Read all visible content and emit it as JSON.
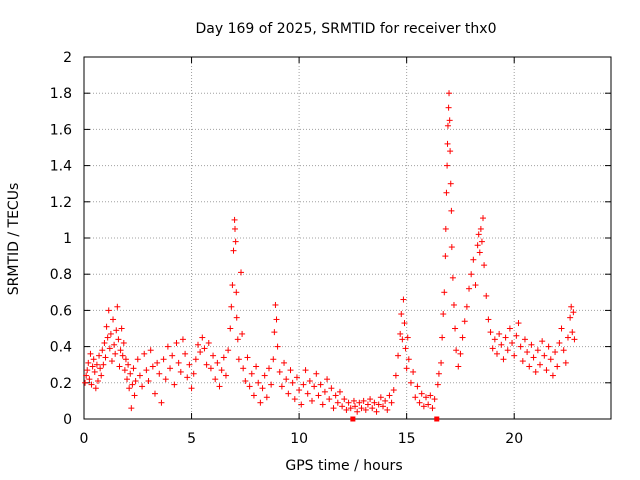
{
  "chart_data": {
    "type": "scatter",
    "title": "Day 169 of 2025, SRMTID for receiver thx0",
    "xlabel": "GPS time / hours",
    "ylabel": "SRMTID / TECUs",
    "xlim": [
      0,
      24.5
    ],
    "ylim": [
      0,
      2
    ],
    "xticks": [
      0,
      5,
      10,
      15,
      20
    ],
    "xtick_labels": [
      "0",
      "5",
      "10",
      "15",
      "20"
    ],
    "yticks": [
      0,
      0.2,
      0.4,
      0.6,
      0.8,
      1,
      1.2,
      1.4,
      1.6,
      1.8,
      2
    ],
    "ytick_labels": [
      "0",
      "0.2",
      "0.4",
      "0.6",
      "0.8",
      "1",
      "1.2",
      "1.4",
      "1.6",
      "1.8",
      "2"
    ],
    "grid": true,
    "marker": "+",
    "color": "#ff0000",
    "series": [
      {
        "name": "SRMTID",
        "points": [
          [
            0.05,
            0.2
          ],
          [
            0.1,
            0.24
          ],
          [
            0.15,
            0.27
          ],
          [
            0.2,
            0.31
          ],
          [
            0.25,
            0.22
          ],
          [
            0.3,
            0.36
          ],
          [
            0.35,
            0.19
          ],
          [
            0.4,
            0.29
          ],
          [
            0.45,
            0.33
          ],
          [
            0.5,
            0.26
          ],
          [
            0.55,
            0.17
          ],
          [
            0.6,
            0.3
          ],
          [
            0.65,
            0.21
          ],
          [
            0.7,
            0.35
          ],
          [
            0.75,
            0.28
          ],
          [
            0.8,
            0.24
          ],
          [
            0.85,
            0.38
          ],
          [
            0.9,
            0.3
          ],
          [
            0.95,
            0.42
          ],
          [
            1.0,
            0.34
          ],
          [
            1.05,
            0.51
          ],
          [
            1.1,
            0.45
          ],
          [
            1.15,
            0.6
          ],
          [
            1.2,
            0.39
          ],
          [
            1.25,
            0.47
          ],
          [
            1.3,
            0.32
          ],
          [
            1.35,
            0.55
          ],
          [
            1.4,
            0.41
          ],
          [
            1.45,
            0.36
          ],
          [
            1.5,
            0.49
          ],
          [
            1.55,
            0.62
          ],
          [
            1.6,
            0.44
          ],
          [
            1.65,
            0.29
          ],
          [
            1.7,
            0.38
          ],
          [
            1.75,
            0.5
          ],
          [
            1.8,
            0.35
          ],
          [
            1.85,
            0.42
          ],
          [
            1.9,
            0.27
          ],
          [
            1.95,
            0.33
          ],
          [
            2.0,
            0.22
          ],
          [
            2.05,
            0.3
          ],
          [
            2.1,
            0.17
          ],
          [
            2.15,
            0.25
          ],
          [
            2.2,
            0.06
          ],
          [
            2.25,
            0.19
          ],
          [
            2.3,
            0.28
          ],
          [
            2.35,
            0.13
          ],
          [
            2.4,
            0.21
          ],
          [
            2.5,
            0.33
          ],
          [
            2.6,
            0.24
          ],
          [
            2.7,
            0.18
          ],
          [
            2.8,
            0.36
          ],
          [
            2.9,
            0.27
          ],
          [
            3.0,
            0.21
          ],
          [
            3.1,
            0.38
          ],
          [
            3.2,
            0.29
          ],
          [
            3.3,
            0.14
          ],
          [
            3.4,
            0.31
          ],
          [
            3.5,
            0.25
          ],
          [
            3.6,
            0.09
          ],
          [
            3.7,
            0.33
          ],
          [
            3.8,
            0.22
          ],
          [
            3.9,
            0.4
          ],
          [
            4.0,
            0.28
          ],
          [
            4.1,
            0.35
          ],
          [
            4.2,
            0.19
          ],
          [
            4.3,
            0.42
          ],
          [
            4.4,
            0.31
          ],
          [
            4.5,
            0.26
          ],
          [
            4.6,
            0.44
          ],
          [
            4.7,
            0.36
          ],
          [
            4.8,
            0.23
          ],
          [
            4.9,
            0.3
          ],
          [
            5.0,
            0.17
          ],
          [
            5.1,
            0.25
          ],
          [
            5.2,
            0.33
          ],
          [
            5.3,
            0.41
          ],
          [
            5.4,
            0.37
          ],
          [
            5.5,
            0.45
          ],
          [
            5.6,
            0.39
          ],
          [
            5.7,
            0.3
          ],
          [
            5.8,
            0.42
          ],
          [
            5.9,
            0.28
          ],
          [
            6.0,
            0.35
          ],
          [
            6.1,
            0.22
          ],
          [
            6.2,
            0.31
          ],
          [
            6.3,
            0.18
          ],
          [
            6.4,
            0.27
          ],
          [
            6.5,
            0.34
          ],
          [
            6.6,
            0.24
          ],
          [
            6.7,
            0.38
          ],
          [
            6.8,
            0.5
          ],
          [
            6.85,
            0.62
          ],
          [
            6.9,
            0.74
          ],
          [
            6.95,
            0.93
          ],
          [
            7.0,
            1.1
          ],
          [
            7.02,
            1.05
          ],
          [
            7.05,
            0.98
          ],
          [
            7.08,
            0.7
          ],
          [
            7.1,
            0.56
          ],
          [
            7.15,
            0.44
          ],
          [
            7.2,
            0.33
          ],
          [
            7.3,
            0.81
          ],
          [
            7.35,
            0.47
          ],
          [
            7.4,
            0.28
          ],
          [
            7.5,
            0.21
          ],
          [
            7.6,
            0.34
          ],
          [
            7.7,
            0.18
          ],
          [
            7.8,
            0.25
          ],
          [
            7.9,
            0.13
          ],
          [
            8.0,
            0.29
          ],
          [
            8.1,
            0.2
          ],
          [
            8.2,
            0.09
          ],
          [
            8.3,
            0.17
          ],
          [
            8.4,
            0.24
          ],
          [
            8.5,
            0.12
          ],
          [
            8.6,
            0.28
          ],
          [
            8.7,
            0.19
          ],
          [
            8.8,
            0.33
          ],
          [
            8.85,
            0.48
          ],
          [
            8.9,
            0.63
          ],
          [
            8.95,
            0.55
          ],
          [
            9.0,
            0.4
          ],
          [
            9.1,
            0.26
          ],
          [
            9.2,
            0.18
          ],
          [
            9.3,
            0.31
          ],
          [
            9.4,
            0.22
          ],
          [
            9.5,
            0.14
          ],
          [
            9.6,
            0.27
          ],
          [
            9.7,
            0.2
          ],
          [
            9.8,
            0.11
          ],
          [
            9.9,
            0.23
          ],
          [
            10.0,
            0.16
          ],
          [
            10.1,
            0.08
          ],
          [
            10.2,
            0.19
          ],
          [
            10.3,
            0.27
          ],
          [
            10.4,
            0.14
          ],
          [
            10.5,
            0.21
          ],
          [
            10.6,
            0.1
          ],
          [
            10.7,
            0.18
          ],
          [
            10.8,
            0.25
          ],
          [
            10.9,
            0.13
          ],
          [
            11.0,
            0.19
          ],
          [
            11.1,
            0.08
          ],
          [
            11.2,
            0.15
          ],
          [
            11.3,
            0.22
          ],
          [
            11.4,
            0.11
          ],
          [
            11.5,
            0.17
          ],
          [
            11.6,
            0.06
          ],
          [
            11.7,
            0.13
          ],
          [
            11.8,
            0.09
          ],
          [
            11.9,
            0.15
          ],
          [
            12.0,
            0.07
          ],
          [
            12.1,
            0.11
          ],
          [
            12.2,
            0.05
          ],
          [
            12.3,
            0.09
          ],
          [
            12.4,
            0.06
          ],
          [
            12.5,
            0.0
          ],
          [
            12.55,
            0.1
          ],
          [
            12.6,
            0.07
          ],
          [
            12.7,
            0.04
          ],
          [
            12.8,
            0.09
          ],
          [
            12.9,
            0.06
          ],
          [
            13.0,
            0.1
          ],
          [
            13.1,
            0.05
          ],
          [
            13.2,
            0.08
          ],
          [
            13.3,
            0.11
          ],
          [
            13.4,
            0.06
          ],
          [
            13.5,
            0.09
          ],
          [
            13.6,
            0.04
          ],
          [
            13.7,
            0.08
          ],
          [
            13.8,
            0.12
          ],
          [
            13.9,
            0.07
          ],
          [
            14.0,
            0.1
          ],
          [
            14.1,
            0.05
          ],
          [
            14.2,
            0.13
          ],
          [
            14.3,
            0.09
          ],
          [
            14.4,
            0.16
          ],
          [
            14.5,
            0.24
          ],
          [
            14.6,
            0.35
          ],
          [
            14.7,
            0.47
          ],
          [
            14.75,
            0.58
          ],
          [
            14.8,
            0.44
          ],
          [
            14.85,
            0.66
          ],
          [
            14.9,
            0.53
          ],
          [
            14.95,
            0.39
          ],
          [
            15.0,
            0.28
          ],
          [
            15.05,
            0.45
          ],
          [
            15.1,
            0.33
          ],
          [
            15.2,
            0.2
          ],
          [
            15.3,
            0.26
          ],
          [
            15.4,
            0.12
          ],
          [
            15.5,
            0.18
          ],
          [
            15.6,
            0.09
          ],
          [
            15.7,
            0.14
          ],
          [
            15.8,
            0.07
          ],
          [
            15.9,
            0.12
          ],
          [
            16.0,
            0.08
          ],
          [
            16.1,
            0.13
          ],
          [
            16.2,
            0.06
          ],
          [
            16.3,
            0.11
          ],
          [
            16.4,
            0.0
          ],
          [
            16.45,
            0.19
          ],
          [
            16.5,
            0.25
          ],
          [
            16.6,
            0.31
          ],
          [
            16.65,
            0.45
          ],
          [
            16.7,
            0.58
          ],
          [
            16.75,
            0.7
          ],
          [
            16.8,
            0.9
          ],
          [
            16.82,
            1.05
          ],
          [
            16.85,
            1.25
          ],
          [
            16.88,
            1.4
          ],
          [
            16.9,
            1.52
          ],
          [
            16.92,
            1.62
          ],
          [
            16.95,
            1.72
          ],
          [
            16.97,
            1.8
          ],
          [
            17.0,
            1.65
          ],
          [
            17.02,
            1.48
          ],
          [
            17.05,
            1.3
          ],
          [
            17.08,
            1.15
          ],
          [
            17.1,
            0.95
          ],
          [
            17.15,
            0.78
          ],
          [
            17.2,
            0.63
          ],
          [
            17.25,
            0.5
          ],
          [
            17.3,
            0.38
          ],
          [
            17.4,
            0.29
          ],
          [
            17.5,
            0.36
          ],
          [
            17.6,
            0.45
          ],
          [
            17.7,
            0.54
          ],
          [
            17.8,
            0.62
          ],
          [
            17.9,
            0.72
          ],
          [
            18.0,
            0.8
          ],
          [
            18.1,
            0.88
          ],
          [
            18.2,
            0.74
          ],
          [
            18.3,
            0.96
          ],
          [
            18.35,
            1.02
          ],
          [
            18.4,
            0.92
          ],
          [
            18.45,
            1.05
          ],
          [
            18.5,
            0.98
          ],
          [
            18.55,
            1.11
          ],
          [
            18.6,
            0.85
          ],
          [
            18.7,
            0.68
          ],
          [
            18.8,
            0.55
          ],
          [
            18.9,
            0.48
          ],
          [
            19.0,
            0.39
          ],
          [
            19.1,
            0.44
          ],
          [
            19.2,
            0.36
          ],
          [
            19.3,
            0.47
          ],
          [
            19.4,
            0.41
          ],
          [
            19.5,
            0.33
          ],
          [
            19.6,
            0.45
          ],
          [
            19.7,
            0.38
          ],
          [
            19.8,
            0.5
          ],
          [
            19.9,
            0.42
          ],
          [
            20.0,
            0.35
          ],
          [
            20.1,
            0.46
          ],
          [
            20.2,
            0.53
          ],
          [
            20.3,
            0.4
          ],
          [
            20.4,
            0.32
          ],
          [
            20.5,
            0.44
          ],
          [
            20.6,
            0.37
          ],
          [
            20.7,
            0.29
          ],
          [
            20.8,
            0.41
          ],
          [
            20.9,
            0.34
          ],
          [
            21.0,
            0.26
          ],
          [
            21.1,
            0.38
          ],
          [
            21.2,
            0.3
          ],
          [
            21.3,
            0.43
          ],
          [
            21.4,
            0.35
          ],
          [
            21.5,
            0.27
          ],
          [
            21.6,
            0.4
          ],
          [
            21.7,
            0.33
          ],
          [
            21.8,
            0.24
          ],
          [
            21.9,
            0.37
          ],
          [
            22.0,
            0.29
          ],
          [
            22.1,
            0.42
          ],
          [
            22.2,
            0.5
          ],
          [
            22.3,
            0.38
          ],
          [
            22.4,
            0.31
          ],
          [
            22.5,
            0.45
          ],
          [
            22.6,
            0.56
          ],
          [
            22.65,
            0.62
          ],
          [
            22.7,
            0.48
          ],
          [
            22.75,
            0.59
          ],
          [
            22.8,
            0.44
          ]
        ]
      }
    ]
  }
}
